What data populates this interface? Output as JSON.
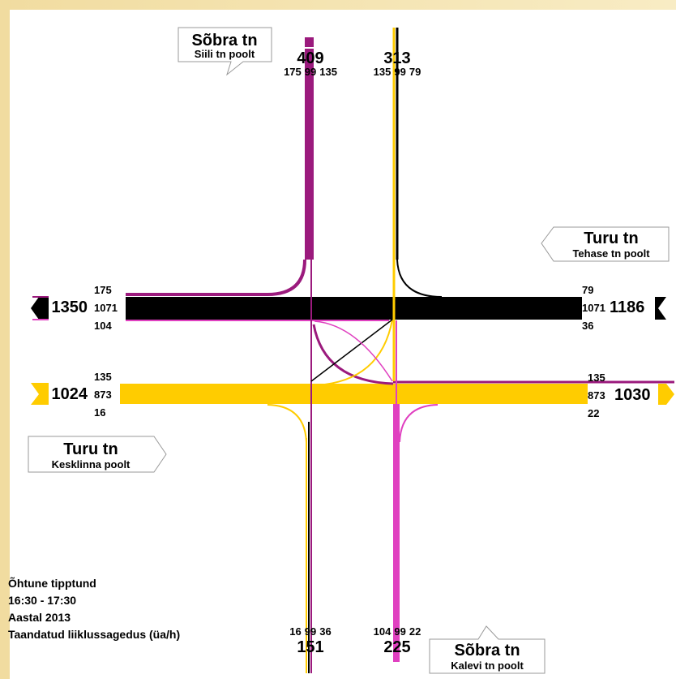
{
  "roads": {
    "north": {
      "name": "Sõbra tn",
      "from": "Siili tn poolt"
    },
    "east": {
      "name": "Turu tn",
      "from": "Tehase tn poolt"
    },
    "west": {
      "name": "Turu tn",
      "from": "Kesklinna poolt"
    },
    "south": {
      "name": "Sõbra tn",
      "from": "Kalevi tn poolt"
    }
  },
  "counts": {
    "north_in": {
      "total": 409,
      "lanes": [
        175,
        99,
        135
      ]
    },
    "north_out": {
      "total": 313,
      "lanes": [
        135,
        99,
        79
      ]
    },
    "west_out": {
      "total": 1350,
      "lanes": [
        175,
        1071,
        104
      ]
    },
    "west_in": {
      "total": 1024,
      "lanes": [
        135,
        873,
        16
      ]
    },
    "east_in": {
      "total": 1186,
      "lanes": [
        79,
        1071,
        36
      ]
    },
    "east_out": {
      "total": 1030,
      "lanes": [
        135,
        873,
        22
      ]
    },
    "south_out": {
      "total": 151,
      "lanes": [
        16,
        99,
        36
      ]
    },
    "south_in": {
      "total": 225,
      "lanes": [
        104,
        99,
        22
      ]
    }
  },
  "info": [
    "Õhtune tipptund",
    "16:30 - 17:30",
    "Aastal 2013",
    "Taandatud liiklussagedus (üa/h)"
  ]
}
